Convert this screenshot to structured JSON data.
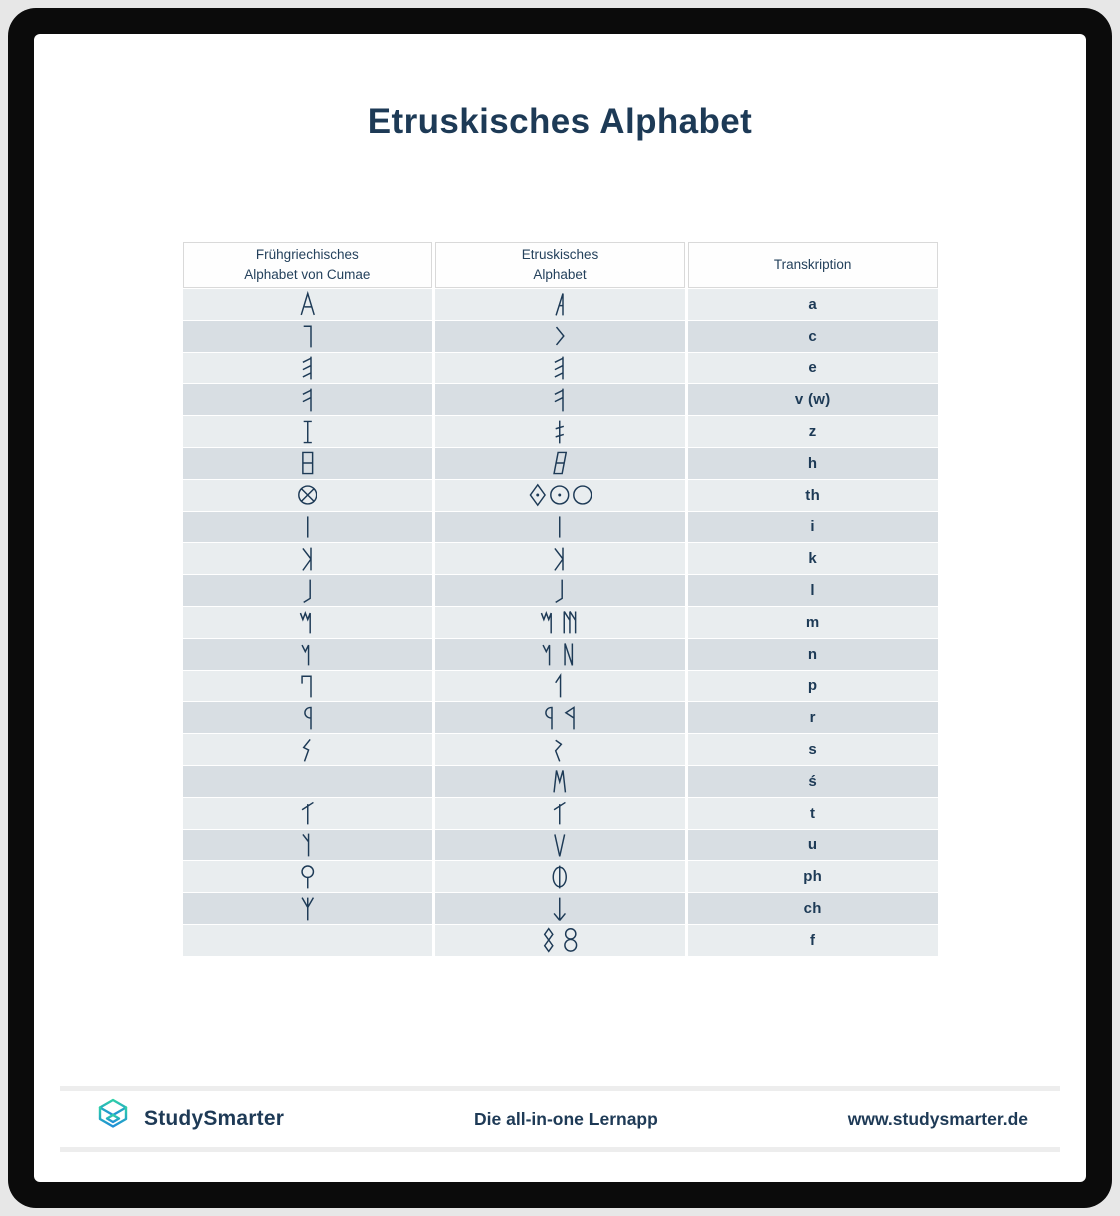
{
  "page": {
    "title": "Etruskisches Alphabet"
  },
  "colors": {
    "ink": "#1d3a56",
    "row_light": "#e9edef",
    "row_dark": "#d8dee3",
    "brand_teal": "#2fd0a8",
    "brand_blue": "#1f8ed6"
  },
  "table": {
    "columns": [
      {
        "lines": [
          "Frühgriechisches",
          "Alphabet von Cumae"
        ]
      },
      {
        "lines": [
          "Etruskisches",
          "Alphabet"
        ]
      },
      {
        "lines": [
          "Transkription"
        ]
      }
    ],
    "rows": [
      {
        "greek": [
          "alpha-pointed"
        ],
        "etruscan": [
          "a-right-vertical"
        ],
        "transcription": "a"
      },
      {
        "greek": [
          "gamma-mirrored"
        ],
        "etruscan": [
          "chevron-right"
        ],
        "transcription": "c"
      },
      {
        "greek": [
          "e-mirrored-slant"
        ],
        "etruscan": [
          "e-mirrored-slant"
        ],
        "transcription": "e"
      },
      {
        "greek": [
          "digamma-mirrored"
        ],
        "etruscan": [
          "digamma-mirrored"
        ],
        "transcription": "v (w)"
      },
      {
        "greek": [
          "i-serif"
        ],
        "etruscan": [
          "z-double-bar"
        ],
        "transcription": "z"
      },
      {
        "greek": [
          "heta-box"
        ],
        "etruscan": [
          "heta-box-slanted"
        ],
        "transcription": "h"
      },
      {
        "greek": [
          "theta-crossed"
        ],
        "etruscan": [
          "theta-diamond-dot",
          "theta-circle-dot",
          "circle-plain"
        ],
        "transcription": "th"
      },
      {
        "greek": [
          "vertical-bar"
        ],
        "etruscan": [
          "vertical-bar"
        ],
        "transcription": "i"
      },
      {
        "greek": [
          "kappa-mirrored"
        ],
        "etruscan": [
          "kappa-mirrored"
        ],
        "transcription": "k"
      },
      {
        "greek": [
          "lambda-hooked"
        ],
        "etruscan": [
          "lambda-hooked"
        ],
        "transcription": "l"
      },
      {
        "greek": [
          "mu-zigzag-tail"
        ],
        "etruscan": [
          "mu-zigzag-tail",
          "mu-three-legs"
        ],
        "transcription": "m"
      },
      {
        "greek": [
          "nu-zigzag-tail"
        ],
        "etruscan": [
          "nu-zigzag-tail",
          "nu-angular"
        ],
        "transcription": "n"
      },
      {
        "greek": [
          "pi-hooked"
        ],
        "etruscan": [
          "p-flag"
        ],
        "transcription": "p"
      },
      {
        "greek": [
          "rho-round-bowl"
        ],
        "etruscan": [
          "rho-round-bowl",
          "rho-triangle-bowl"
        ],
        "transcription": "r"
      },
      {
        "greek": [
          "sigma-zigzag"
        ],
        "etruscan": [
          "sigma-zigzag-reversed"
        ],
        "transcription": "s"
      },
      {
        "greek": [],
        "etruscan": [
          "san-m-shape"
        ],
        "transcription": "ś"
      },
      {
        "greek": [
          "tau-slanted-cross"
        ],
        "etruscan": [
          "tau-slanted-cross"
        ],
        "transcription": "t"
      },
      {
        "greek": [
          "upsilon-branch"
        ],
        "etruscan": [
          "v-plain"
        ],
        "transcription": "u"
      },
      {
        "greek": [
          "phi-stemmed-circle"
        ],
        "etruscan": [
          "phi-crossed-ellipse"
        ],
        "transcription": "ph"
      },
      {
        "greek": [
          "psi-trident"
        ],
        "etruscan": [
          "arrow-down"
        ],
        "transcription": "ch"
      },
      {
        "greek": [],
        "etruscan": [
          "eight-angular",
          "eight-round"
        ],
        "transcription": "f"
      }
    ]
  },
  "footer": {
    "brand": "StudySmarter",
    "tagline": "Die all-in-one Lernapp",
    "website": "www.studysmarter.de"
  }
}
